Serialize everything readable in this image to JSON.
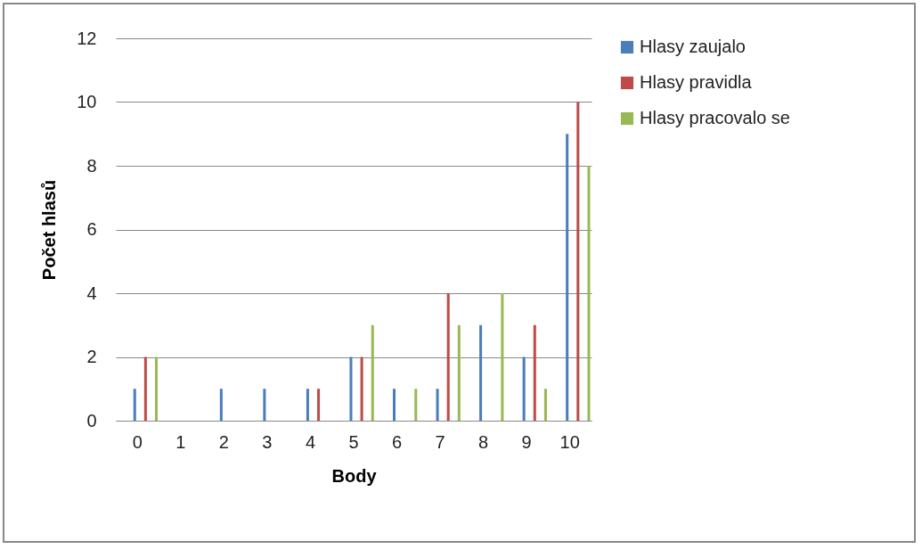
{
  "chart_data": {
    "type": "bar",
    "xlabel": "Body",
    "ylabel": "Počet hlasů",
    "categories": [
      "0",
      "1",
      "2",
      "3",
      "4",
      "5",
      "6",
      "7",
      "8",
      "9",
      "10"
    ],
    "series": [
      {
        "name": "Hlasy zaujalo",
        "color": "#4a7ebb",
        "values": [
          1,
          0,
          1,
          1,
          1,
          2,
          1,
          1,
          3,
          2,
          9
        ]
      },
      {
        "name": "Hlasy pravidla",
        "color": "#be4b48",
        "values": [
          2,
          0,
          0,
          0,
          1,
          2,
          0,
          4,
          0,
          3,
          10
        ]
      },
      {
        "name": "Hlasy pracovalo se",
        "color": "#98b954",
        "values": [
          2,
          0,
          0,
          0,
          0,
          3,
          1,
          3,
          4,
          1,
          8
        ]
      }
    ],
    "ylim": [
      0,
      12
    ],
    "yticks": [
      0,
      2,
      4,
      6,
      8,
      10,
      12
    ],
    "grid": "y",
    "legend": "right"
  }
}
